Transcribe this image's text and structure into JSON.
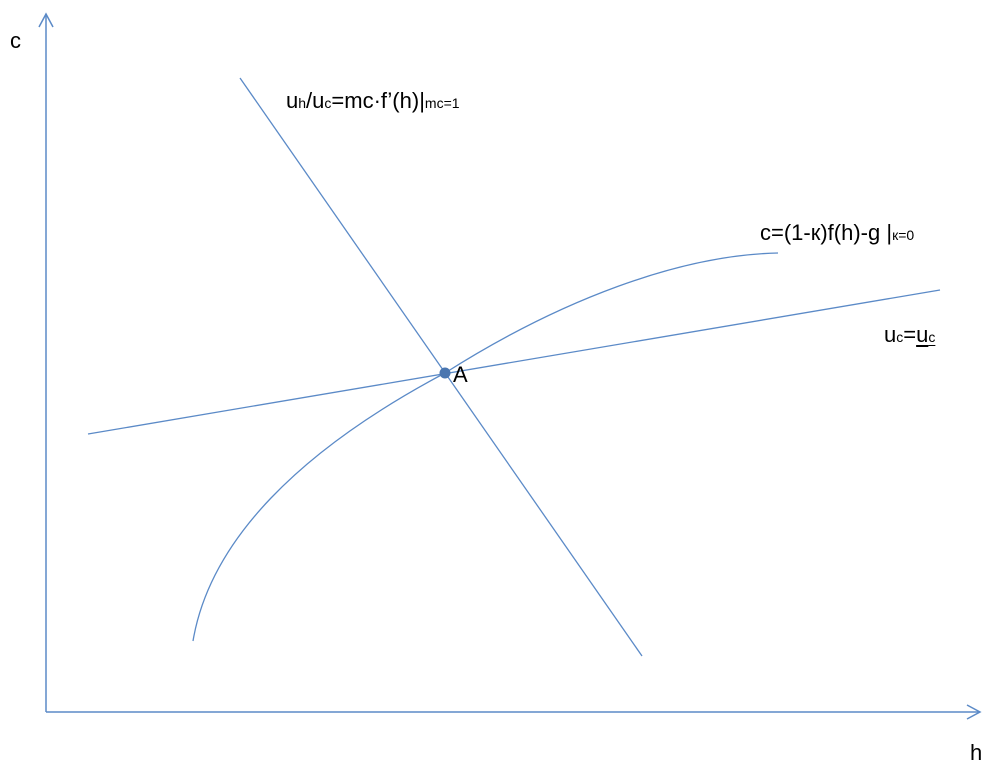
{
  "axes": {
    "y_label": "c",
    "x_label": "h"
  },
  "labels": {
    "foc": {
      "u1": "u",
      "h_sub": "h",
      "slash": "/u",
      "c_sub": "c",
      "rest": "=mc·f’(h)|",
      "cond": "mc=1"
    },
    "budget": {
      "main": "c=(1-к)f(h)-g |",
      "cond": "к=0"
    },
    "indiff": {
      "u": "u",
      "c_sub": "c",
      "eq": "=",
      "u_under": "u",
      "c_under": "c"
    },
    "point": "A"
  },
  "colors": {
    "line": "#5b8ac7",
    "point": "#4a76b0"
  }
}
